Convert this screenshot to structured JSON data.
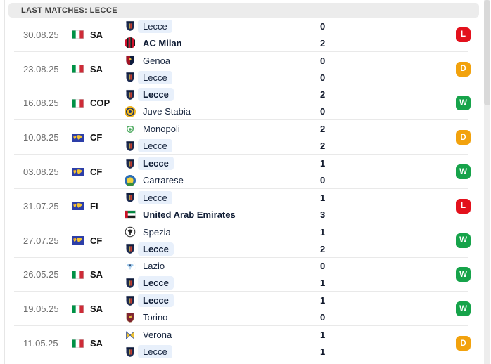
{
  "header": {
    "title": "LAST MATCHES: LECCE"
  },
  "colors": {
    "result": {
      "W": "#16a34a",
      "D": "#f2a20d",
      "L": "#e3111c"
    },
    "highlight_pill": "#e8f0fb",
    "header_bg": "#ececec"
  },
  "matches": [
    {
      "date": "30.08.25",
      "competition": "SA",
      "competition_flag": "italy",
      "home": {
        "name": "Lecce",
        "logo": "lecce",
        "score": "0",
        "bold": false,
        "highlight": true
      },
      "away": {
        "name": "AC Milan",
        "logo": "ac-milan",
        "score": "2",
        "bold": true,
        "highlight": false
      },
      "result": "L"
    },
    {
      "date": "23.08.25",
      "competition": "SA",
      "competition_flag": "italy",
      "home": {
        "name": "Genoa",
        "logo": "genoa",
        "score": "0",
        "bold": false,
        "highlight": false
      },
      "away": {
        "name": "Lecce",
        "logo": "lecce",
        "score": "0",
        "bold": false,
        "highlight": true
      },
      "result": "D"
    },
    {
      "date": "16.08.25",
      "competition": "COP",
      "competition_flag": "italy",
      "home": {
        "name": "Lecce",
        "logo": "lecce",
        "score": "2",
        "bold": true,
        "highlight": true
      },
      "away": {
        "name": "Juve Stabia",
        "logo": "juve-stabia",
        "score": "0",
        "bold": false,
        "highlight": false
      },
      "result": "W"
    },
    {
      "date": "10.08.25",
      "competition": "CF",
      "competition_flag": "world",
      "home": {
        "name": "Monopoli",
        "logo": "monopoli",
        "score": "2",
        "bold": false,
        "highlight": false
      },
      "away": {
        "name": "Lecce",
        "logo": "lecce",
        "score": "2",
        "bold": false,
        "highlight": true
      },
      "result": "D"
    },
    {
      "date": "03.08.25",
      "competition": "CF",
      "competition_flag": "world",
      "home": {
        "name": "Lecce",
        "logo": "lecce",
        "score": "1",
        "bold": true,
        "highlight": true
      },
      "away": {
        "name": "Carrarese",
        "logo": "carrarese",
        "score": "0",
        "bold": false,
        "highlight": false
      },
      "result": "W"
    },
    {
      "date": "31.07.25",
      "competition": "FI",
      "competition_flag": "world",
      "home": {
        "name": "Lecce",
        "logo": "lecce",
        "score": "1",
        "bold": false,
        "highlight": true
      },
      "away": {
        "name": "United Arab Emirates",
        "logo": "uae",
        "score": "3",
        "bold": true,
        "highlight": false
      },
      "result": "L"
    },
    {
      "date": "27.07.25",
      "competition": "CF",
      "competition_flag": "world",
      "home": {
        "name": "Spezia",
        "logo": "spezia",
        "score": "1",
        "bold": false,
        "highlight": false
      },
      "away": {
        "name": "Lecce",
        "logo": "lecce",
        "score": "2",
        "bold": true,
        "highlight": true
      },
      "result": "W"
    },
    {
      "date": "26.05.25",
      "competition": "SA",
      "competition_flag": "italy",
      "home": {
        "name": "Lazio",
        "logo": "lazio",
        "score": "0",
        "bold": false,
        "highlight": false
      },
      "away": {
        "name": "Lecce",
        "logo": "lecce",
        "score": "1",
        "bold": true,
        "highlight": true
      },
      "result": "W"
    },
    {
      "date": "19.05.25",
      "competition": "SA",
      "competition_flag": "italy",
      "home": {
        "name": "Lecce",
        "logo": "lecce",
        "score": "1",
        "bold": true,
        "highlight": true
      },
      "away": {
        "name": "Torino",
        "logo": "torino",
        "score": "0",
        "bold": false,
        "highlight": false
      },
      "result": "W"
    },
    {
      "date": "11.05.25",
      "competition": "SA",
      "competition_flag": "italy",
      "home": {
        "name": "Verona",
        "logo": "verona",
        "score": "1",
        "bold": false,
        "highlight": false
      },
      "away": {
        "name": "Lecce",
        "logo": "lecce",
        "score": "1",
        "bold": false,
        "highlight": true
      },
      "result": "D"
    }
  ]
}
